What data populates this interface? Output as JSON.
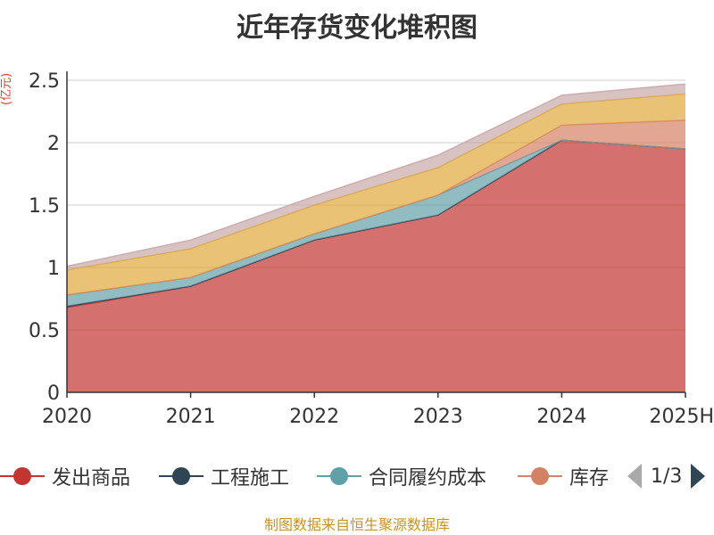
{
  "title": "近年存货变化堆积图",
  "unit_label": "(亿元)",
  "source": "制图数据来自恒生聚源数据库",
  "pager": {
    "text": "1/3"
  },
  "legend": [
    {
      "name": "发出商品",
      "color": "#c23531"
    },
    {
      "name": "工程施工",
      "color": "#2f4554"
    },
    {
      "name": "合同履约成本",
      "color": "#61a0a8"
    },
    {
      "name": "库存",
      "color": "#d48265"
    }
  ],
  "chart_data": {
    "type": "area",
    "stacked": true,
    "categories": [
      "2020",
      "2021",
      "2022",
      "2023",
      "2024",
      "2025H"
    ],
    "ylim": [
      0,
      2.5
    ],
    "yticks": [
      "0",
      "0.5",
      "1",
      "1.5",
      "2",
      "2.5"
    ],
    "ylabel": "(亿元)",
    "grid": true,
    "legend_position": "bottom",
    "series": [
      {
        "name": "发出商品",
        "color": "#c23531",
        "values": [
          0.68,
          0.85,
          1.22,
          1.42,
          2.02,
          1.95
        ]
      },
      {
        "name": "工程施工",
        "color": "#2f4554",
        "values": [
          0.01,
          0,
          0,
          0,
          0,
          0
        ]
      },
      {
        "name": "合同履约成本",
        "color": "#61a0a8",
        "values": [
          0.09,
          0.07,
          0.05,
          0.16,
          0,
          0
        ]
      },
      {
        "name": "库存",
        "color": "#d48265",
        "values": [
          0,
          0,
          0,
          0,
          0.12,
          0.23
        ]
      },
      {
        "name": "",
        "color": "#e0a83a",
        "values": [
          0.2,
          0.23,
          0.23,
          0.22,
          0.17,
          0.21
        ]
      },
      {
        "name": "",
        "color": "#c9a8a8",
        "values": [
          0.03,
          0.07,
          0.07,
          0.1,
          0.07,
          0.08
        ]
      }
    ]
  }
}
